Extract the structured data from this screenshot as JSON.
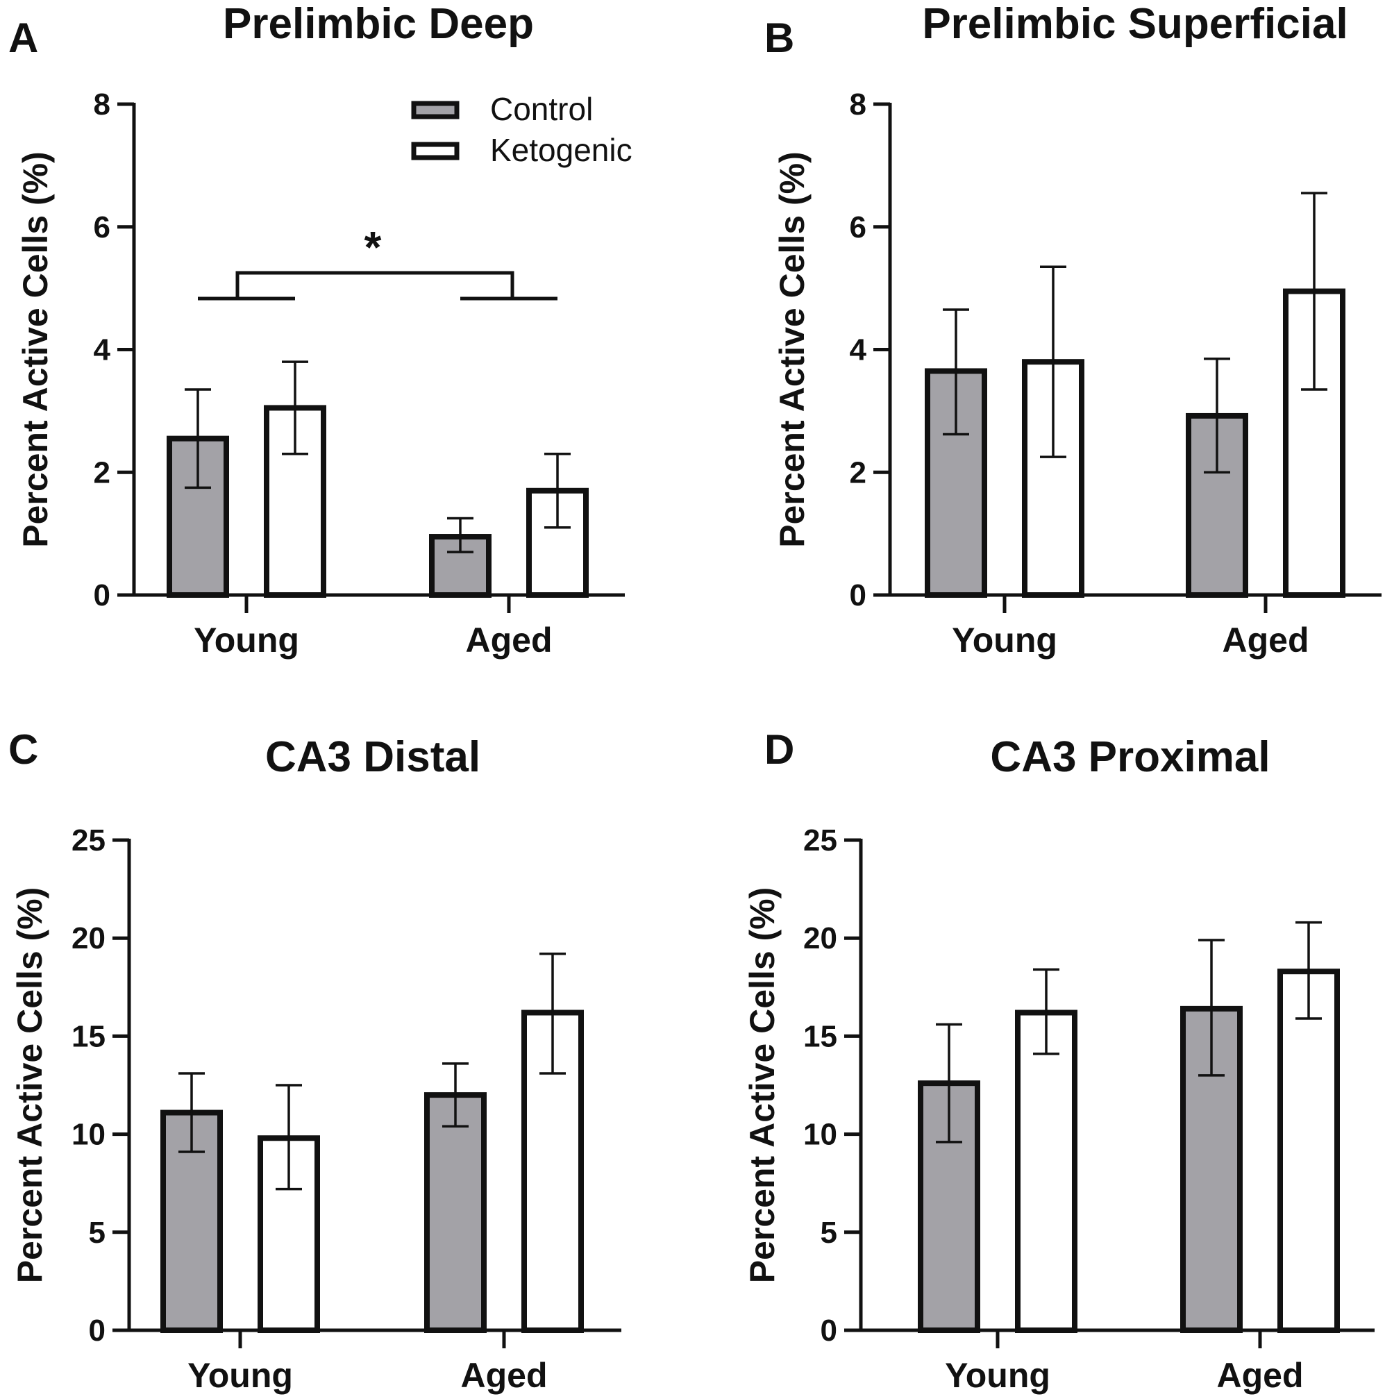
{
  "legend": {
    "control_label": "Control",
    "ketogenic_label": "Ketogenic"
  },
  "colors": {
    "control_fill": "#a3a2a7",
    "ketogenic_fill": "#ffffff",
    "stroke": "#111111"
  },
  "chart_data": [
    {
      "panel": "A",
      "type": "bar",
      "title": "Prelimbic Deep",
      "ylabel": "Percent Active Cells (%)",
      "xlabel": "",
      "ylim": [
        0,
        8
      ],
      "yticks": [
        0,
        2,
        4,
        6,
        8
      ],
      "categories": [
        "Young",
        "Aged"
      ],
      "series": [
        {
          "name": "Control",
          "values": [
            2.55,
            0.95
          ],
          "err_low": [
            1.75,
            0.7
          ],
          "err_high": [
            3.35,
            1.25
          ]
        },
        {
          "name": "Ketogenic",
          "values": [
            3.05,
            1.7
          ],
          "err_low": [
            2.3,
            1.1
          ],
          "err_high": [
            3.8,
            2.3
          ]
        }
      ],
      "significance": {
        "symbol": "*",
        "between": [
          "Young",
          "Aged"
        ]
      }
    },
    {
      "panel": "B",
      "type": "bar",
      "title": "Prelimbic Superficial",
      "ylabel": "Percent Active Cells (%)",
      "xlabel": "",
      "ylim": [
        0,
        8
      ],
      "yticks": [
        0,
        2,
        4,
        6,
        8
      ],
      "categories": [
        "Young",
        "Aged"
      ],
      "series": [
        {
          "name": "Control",
          "values": [
            3.65,
            2.92
          ],
          "err_low": [
            2.62,
            2.0
          ],
          "err_high": [
            4.65,
            3.85
          ]
        },
        {
          "name": "Ketogenic",
          "values": [
            3.8,
            4.95
          ],
          "err_low": [
            2.25,
            3.35
          ],
          "err_high": [
            5.35,
            6.55
          ]
        }
      ]
    },
    {
      "panel": "C",
      "type": "bar",
      "title": "CA3 Distal",
      "ylabel": "Percent Active Cells (%)",
      "xlabel": "",
      "ylim": [
        0,
        25
      ],
      "yticks": [
        0,
        5,
        10,
        15,
        20,
        25
      ],
      "categories": [
        "Young",
        "Aged"
      ],
      "series": [
        {
          "name": "Control",
          "values": [
            11.1,
            12.0
          ],
          "err_low": [
            9.1,
            10.4
          ],
          "err_high": [
            13.1,
            13.6
          ]
        },
        {
          "name": "Ketogenic",
          "values": [
            9.8,
            16.2
          ],
          "err_low": [
            7.2,
            13.1
          ],
          "err_high": [
            12.5,
            19.2
          ]
        }
      ]
    },
    {
      "panel": "D",
      "type": "bar",
      "title": "CA3 Proximal",
      "ylabel": "Percent Active Cells (%)",
      "xlabel": "",
      "ylim": [
        0,
        25
      ],
      "yticks": [
        0,
        5,
        10,
        15,
        20,
        25
      ],
      "categories": [
        "Young",
        "Aged"
      ],
      "series": [
        {
          "name": "Control",
          "values": [
            12.6,
            16.4
          ],
          "err_low": [
            9.6,
            13.0
          ],
          "err_high": [
            15.6,
            19.9
          ]
        },
        {
          "name": "Ketogenic",
          "values": [
            16.2,
            18.3
          ],
          "err_low": [
            14.1,
            15.9
          ],
          "err_high": [
            18.4,
            20.8
          ]
        }
      ]
    }
  ]
}
